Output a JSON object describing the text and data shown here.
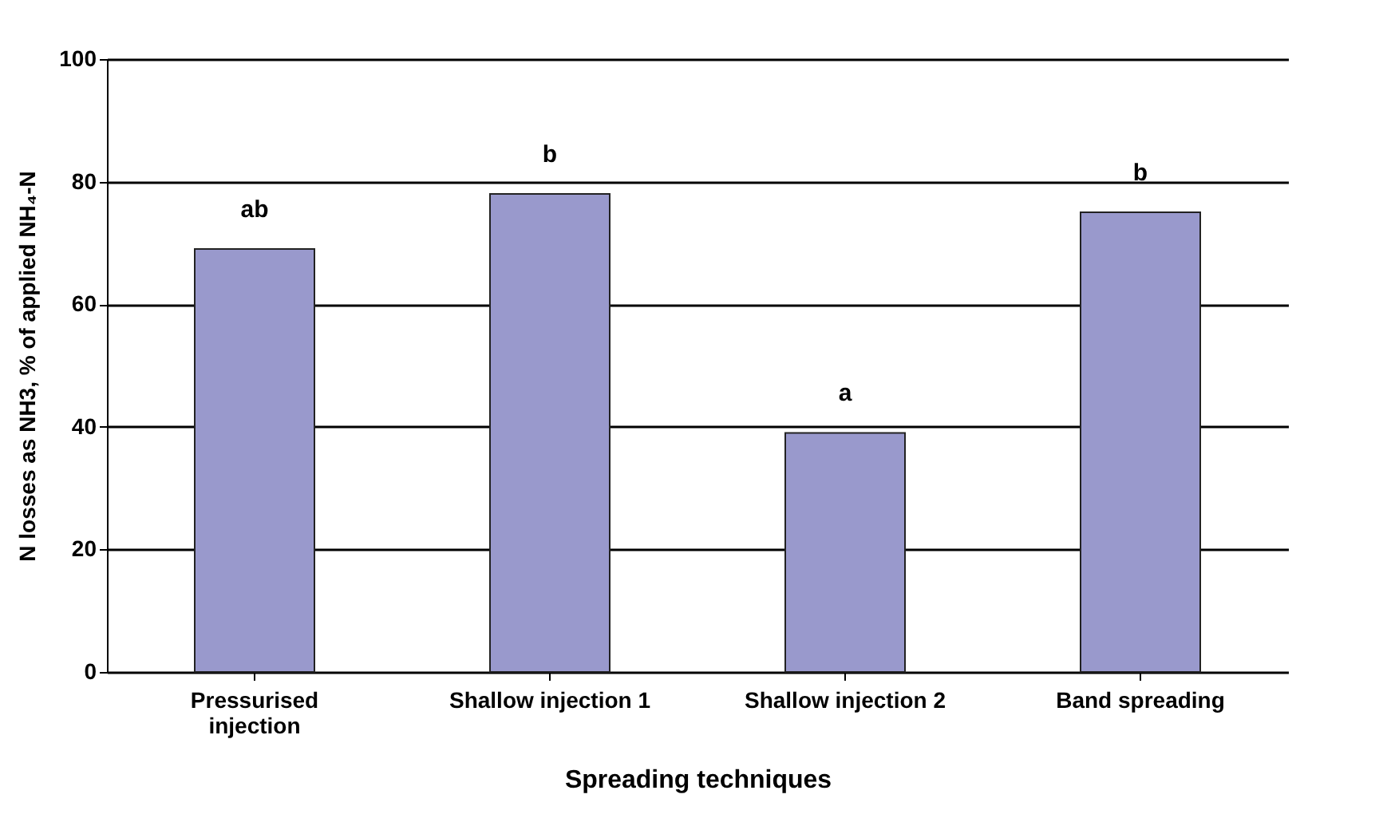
{
  "chart_data": {
    "type": "bar",
    "xlabel": "Spreading techniques",
    "ylabel": "N losses as NH3, % of applied NH₄-N",
    "categories": [
      "Pressurised injection",
      "Shallow injection 1",
      "Shallow injection 2",
      "Band spreading"
    ],
    "values": [
      69,
      78,
      39,
      75
    ],
    "color": "#9999cc",
    "ylim": [
      0,
      100
    ],
    "yticks": [
      0,
      20,
      40,
      60,
      80,
      100
    ],
    "grid": "y",
    "annotations": [
      "ab",
      "b",
      "a",
      "b"
    ]
  }
}
